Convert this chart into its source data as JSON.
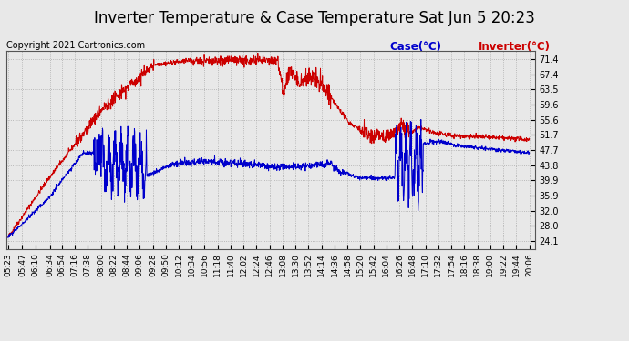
{
  "title": "Inverter Temperature & Case Temperature Sat Jun 5 20:23",
  "copyright": "Copyright 2021 Cartronics.com",
  "legend_case": "Case(°C)",
  "legend_inverter": "Inverter(°C)",
  "yticks": [
    24.1,
    28.0,
    32.0,
    35.9,
    39.9,
    43.8,
    47.7,
    51.7,
    55.6,
    59.6,
    63.5,
    67.4,
    71.4
  ],
  "ylim": [
    22.0,
    73.5
  ],
  "bg_color": "#e8e8e8",
  "plot_bg_color": "#e8e8e8",
  "inverter_color": "#cc0000",
  "case_color": "#0000cc",
  "grid_color": "#aaaaaa",
  "title_fontsize": 12,
  "tick_fontsize": 7.0,
  "legend_fontsize": 8.5,
  "copyright_fontsize": 7.0
}
